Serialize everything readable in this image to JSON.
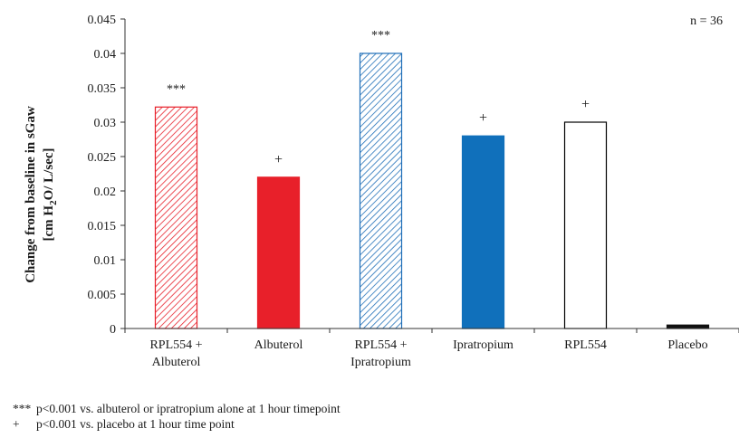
{
  "chart_data": {
    "type": "bar",
    "categories": [
      [
        "RPL554 +",
        "Albuterol"
      ],
      [
        "Albuterol"
      ],
      [
        "RPL554 +",
        "Ipratropium"
      ],
      [
        "Ipratropium"
      ],
      [
        "RPL554"
      ],
      [
        "Placebo"
      ]
    ],
    "values": [
      0.0322,
      0.022,
      0.04,
      0.028,
      0.03,
      0.0005
    ],
    "significance": [
      "***",
      "+",
      "***",
      "+",
      "+",
      ""
    ],
    "bar_styles": [
      {
        "fill": "hatch",
        "color": "#e8202a"
      },
      {
        "fill": "solid",
        "color": "#e8202a"
      },
      {
        "fill": "hatch",
        "color": "#1f6fb8"
      },
      {
        "fill": "solid",
        "color": "#1070bb"
      },
      {
        "fill": "outline",
        "color": "#000000"
      },
      {
        "fill": "solid",
        "color": "#111111"
      }
    ],
    "ylabel_line1": "Change from baseline in sGaw",
    "ylabel_line2_parts": [
      "[cm H",
      "2",
      "O/ L/sec]"
    ],
    "ylim": [
      0,
      0.045
    ],
    "yticks": [
      "0",
      "0.005",
      "0.01",
      "0.015",
      "0.02",
      "0.025",
      "0.03",
      "0.035",
      "0.04",
      "0.045"
    ],
    "annotation": "n = 36",
    "grid": false
  },
  "footnotes": [
    {
      "symbol": "***",
      "text": "p<0.001 vs. albuterol or ipratropium alone at 1 hour timepoint"
    },
    {
      "symbol": "+",
      "text": "p<0.001 vs. placebo at 1 hour time point"
    }
  ]
}
